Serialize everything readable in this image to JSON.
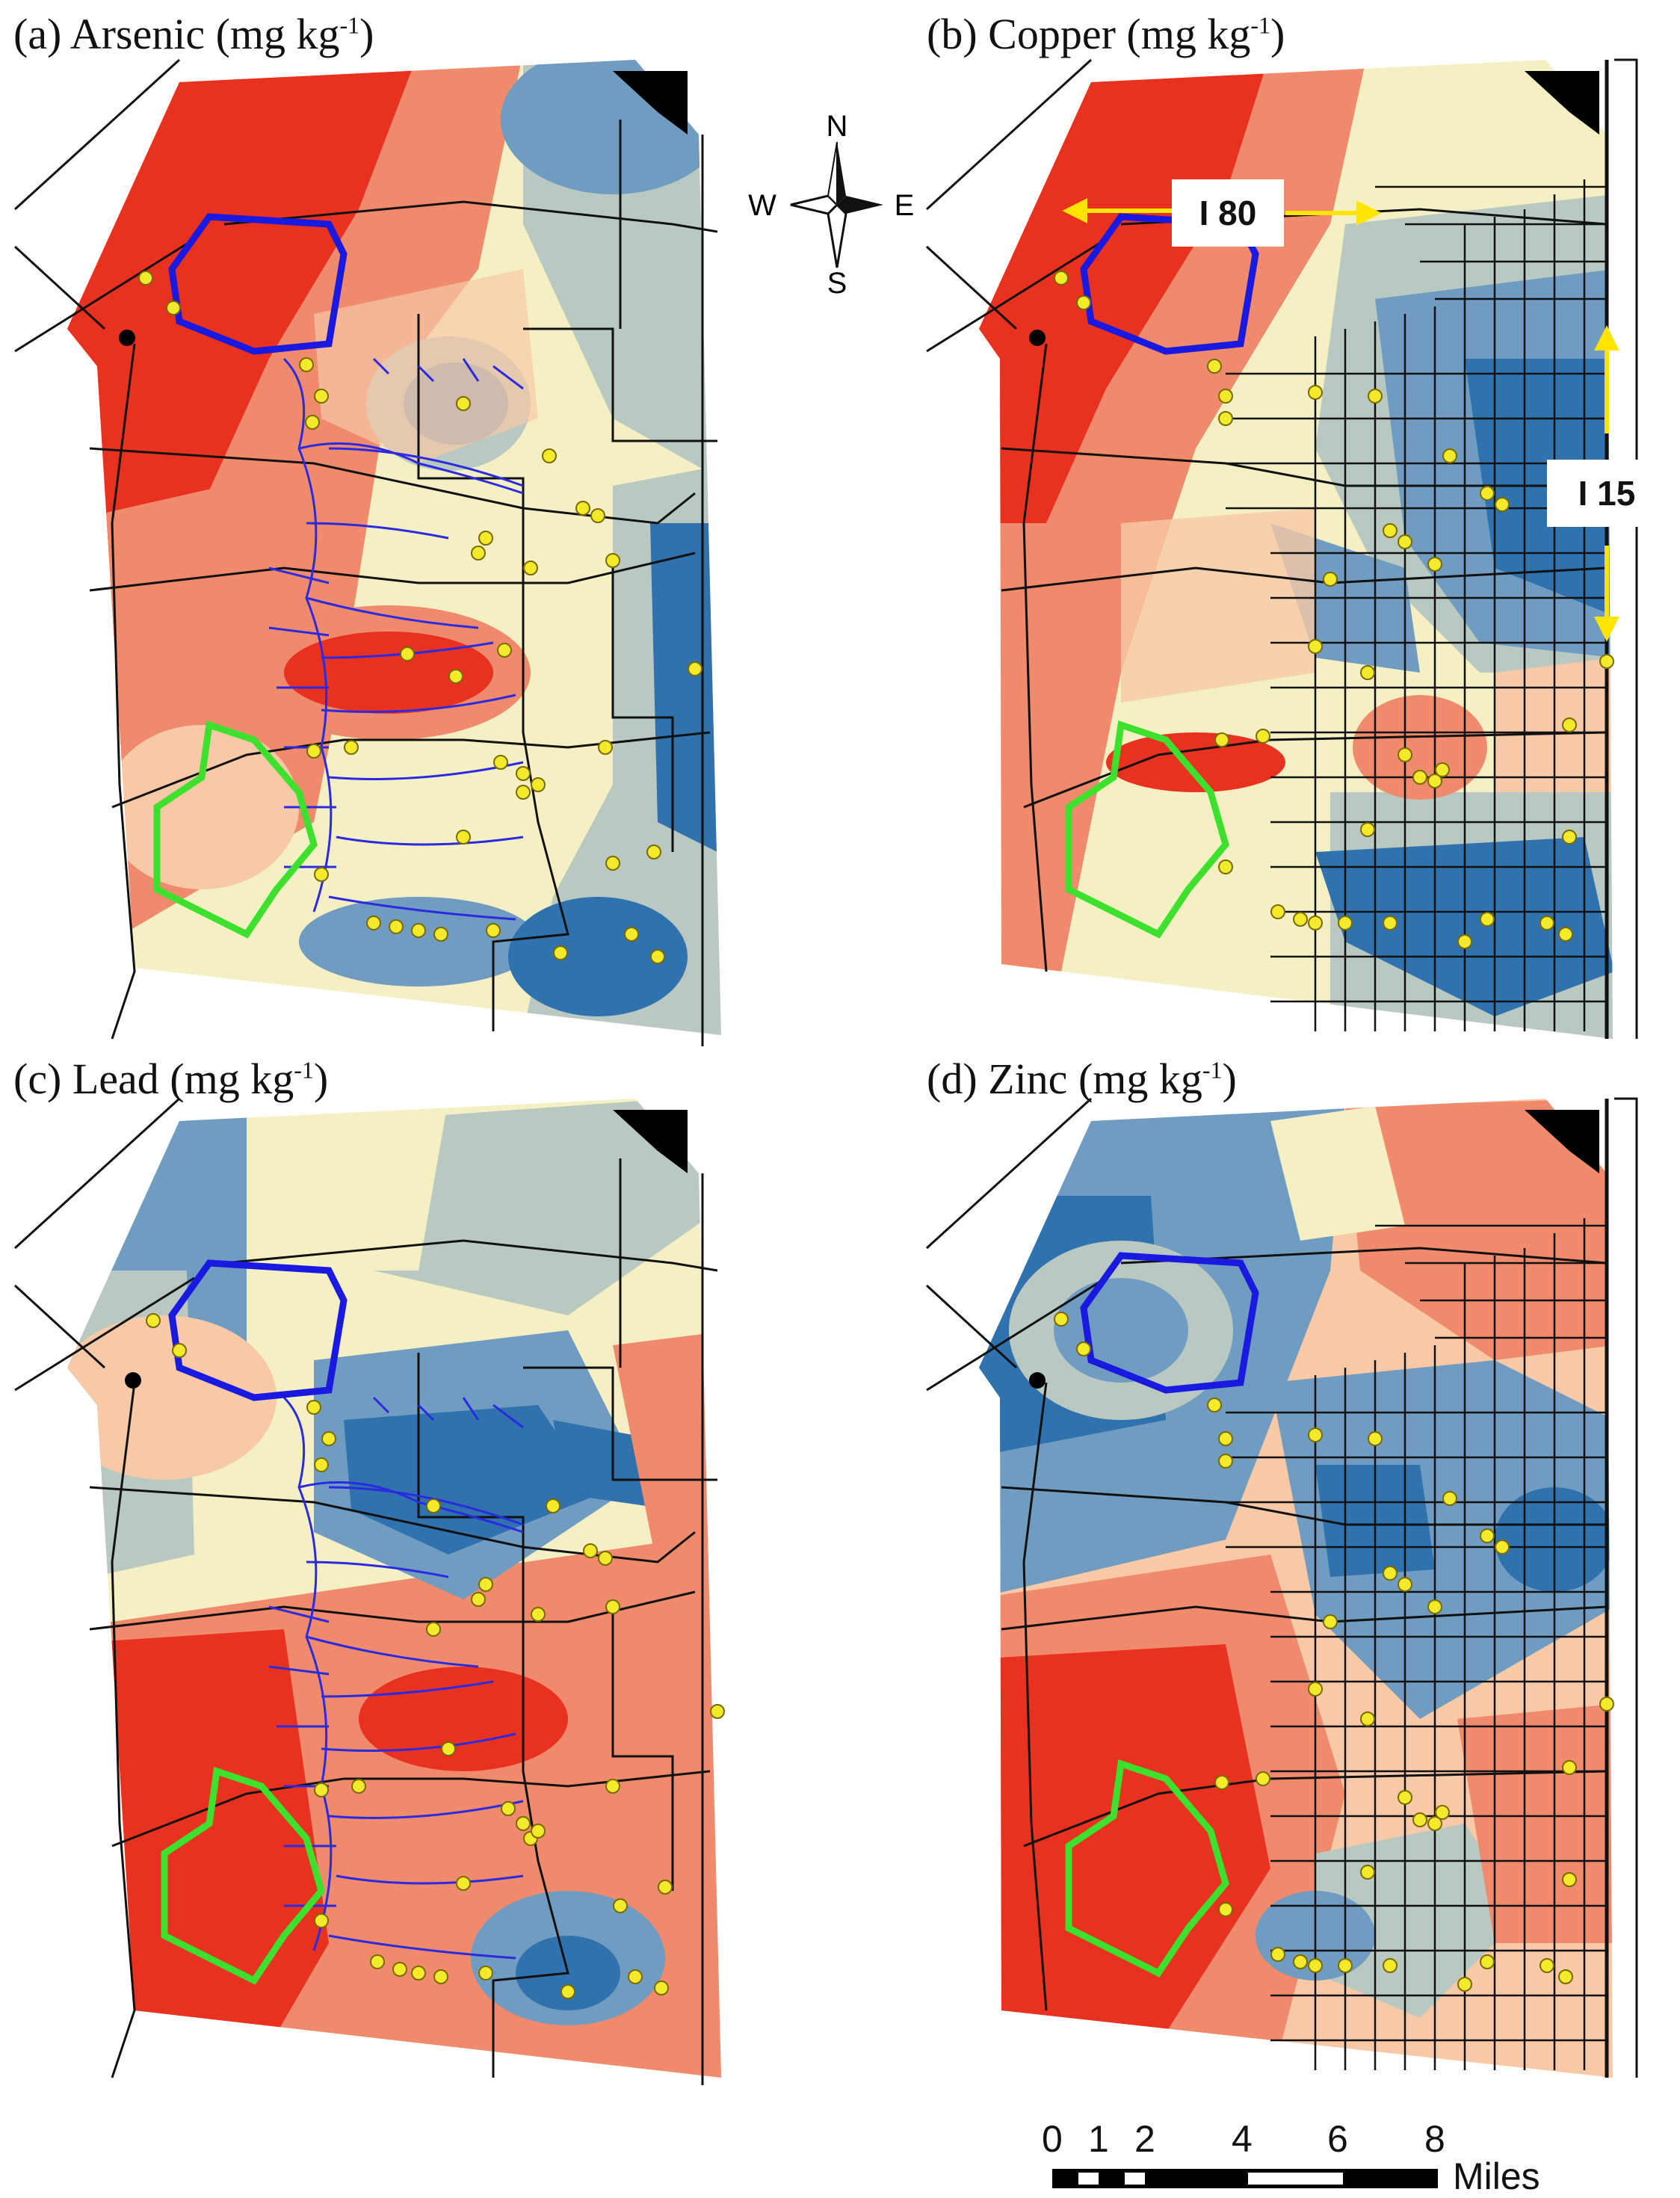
{
  "panels": [
    {
      "id": "a",
      "label": "(a)",
      "element": "Arsenic",
      "unit": "(mg kg",
      "unit_exp": "-1",
      "unit_close": ")"
    },
    {
      "id": "b",
      "label": "(b)",
      "element": "Copper",
      "unit": "(mg kg",
      "unit_exp": "-1",
      "unit_close": ")"
    },
    {
      "id": "c",
      "label": "(c)",
      "element": "Lead",
      "unit": "(mg kg",
      "unit_exp": "-1",
      "unit_close": ")"
    },
    {
      "id": "d",
      "label": "(d)",
      "element": "Zinc",
      "unit": "(mg kg",
      "unit_exp": "-1",
      "unit_close": ")"
    }
  ],
  "compass": {
    "n": "N",
    "s": "S",
    "e": "E",
    "w": "W"
  },
  "highways": {
    "i80": "I 80",
    "i15": "I 15"
  },
  "scale_bar": {
    "ticks": [
      "0",
      "1",
      "2",
      "4",
      "6",
      "8"
    ],
    "unit": "Miles"
  },
  "colors": {
    "high": "#e8321f",
    "mid_high": "#f08a6c",
    "mid": "#f7c9a6",
    "neutral": "#f5f0c4",
    "mid_low": "#b9c9c2",
    "low": "#6f9cc0",
    "lowest": "#2f72ad",
    "sample_point": "#f2ea2a",
    "blue_polygon": "#1919e0",
    "green_polygon": "#3ee02e",
    "streams": "#2a2ae0",
    "arrows": "#ffe400"
  }
}
